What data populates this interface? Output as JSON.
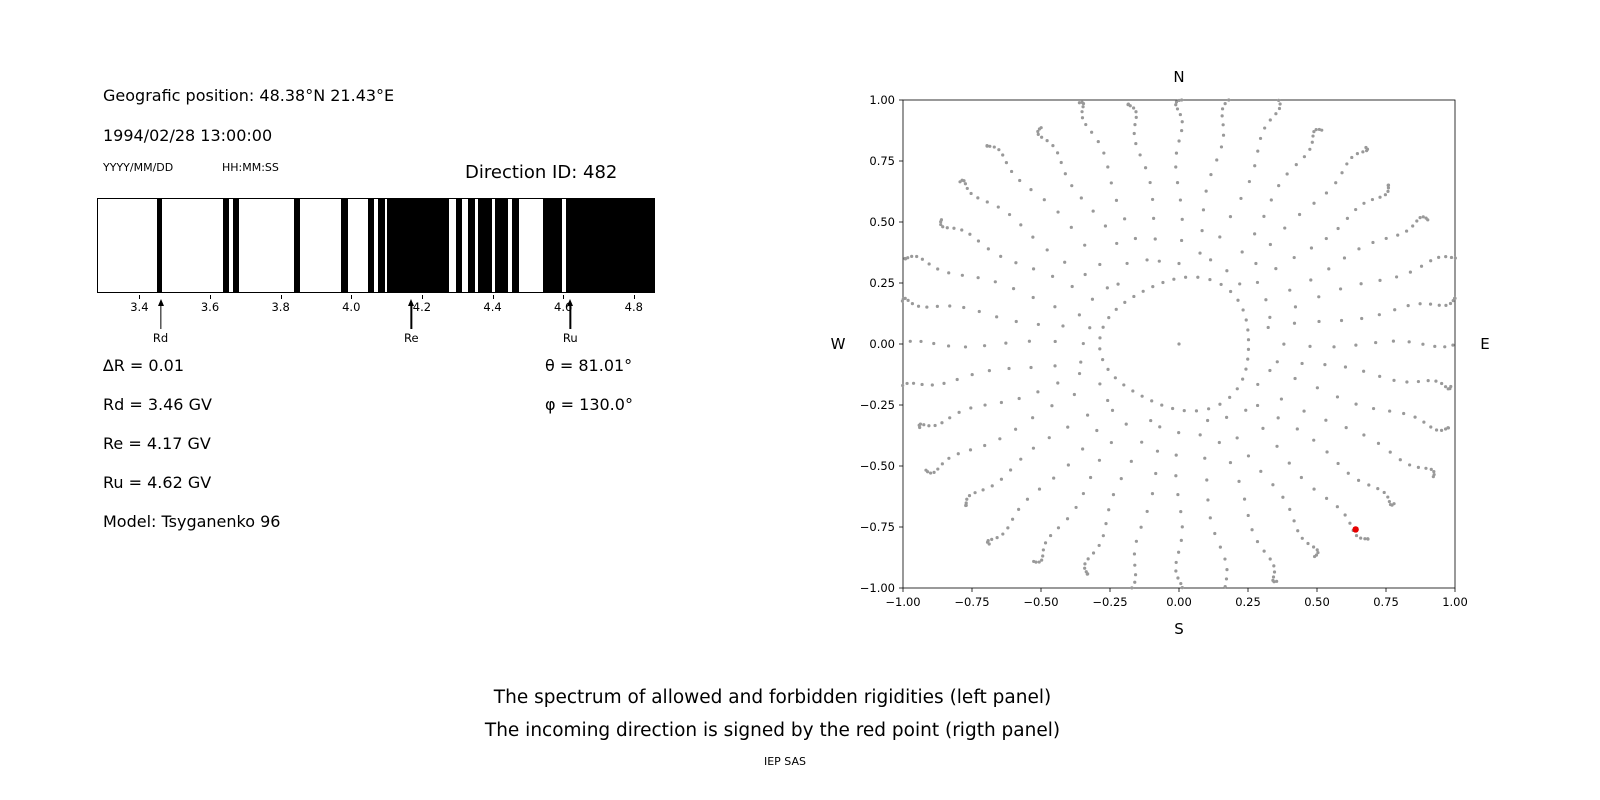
{
  "header": {
    "geo_position": "Geografic position: 48.38°N 21.43°E",
    "datetime": "1994/02/28 13:00:00",
    "date_format_label": "YYYY/MM/DD",
    "time_format_label": "HH:MM:SS",
    "direction_id": "Direction ID: 482"
  },
  "stats": {
    "delta_r": "∆R = 0.01",
    "theta": "θ = 81.01°",
    "rd": "Rd = 3.46 GV",
    "phi": "φ = 130.0°",
    "re": "Re = 4.17 GV",
    "ru": "Ru = 4.62 GV",
    "model": "Model: Tsyganenko 96"
  },
  "captions": {
    "line1": "The spectrum of allowed and forbidden rigidities (left panel)",
    "line2": "The incoming direction is signed by the red point (rigth panel)",
    "credit": "IEP SAS"
  },
  "chart_data": [
    {
      "type": "bar",
      "description": "Penumbra spectrum: black bands = forbidden/allowed rigidity intervals over rigidity axis in GV",
      "xlim": [
        3.28,
        4.86
      ],
      "xticks": [
        3.4,
        3.6,
        3.8,
        4.0,
        4.2,
        4.4,
        4.6,
        4.8
      ],
      "black_bands_gv": [
        [
          3.447,
          3.463
        ],
        [
          3.635,
          3.652
        ],
        [
          3.664,
          3.681
        ],
        [
          3.838,
          3.854
        ],
        [
          3.97,
          3.99
        ],
        [
          4.046,
          4.064
        ],
        [
          4.077,
          4.095
        ],
        [
          4.1,
          4.277
        ],
        [
          4.296,
          4.315
        ],
        [
          4.332,
          4.35
        ],
        [
          4.361,
          4.4
        ],
        [
          4.409,
          4.446
        ],
        [
          4.457,
          4.475
        ],
        [
          4.545,
          4.599
        ],
        [
          4.61,
          4.86
        ]
      ],
      "markers": [
        {
          "label": "Rd",
          "value_gv": 3.46
        },
        {
          "label": "Re",
          "value_gv": 4.17
        },
        {
          "label": "Ru",
          "value_gv": 4.62
        }
      ]
    },
    {
      "type": "scatter",
      "description": "Asymptotic direction map: gray dot spokes radiating from center, inner dotted ring, red point marks incoming direction",
      "xlim": [
        -1.0,
        1.0
      ],
      "ylim": [
        -1.0,
        1.0
      ],
      "xticks": [
        -1.0,
        -0.75,
        -0.5,
        -0.25,
        0.0,
        0.25,
        0.5,
        0.75,
        1.0
      ],
      "yticks": [
        -1.0,
        -0.75,
        -0.5,
        -0.25,
        0.0,
        0.25,
        0.5,
        0.75,
        1.0
      ],
      "compass_labels": {
        "north": "N",
        "south": "S",
        "west": "W",
        "east": "E"
      },
      "dot_color": "#999999",
      "red_point": {
        "x": 0.64,
        "y": -0.76,
        "color": "#e60000"
      },
      "pattern": {
        "spokes": 36,
        "r_start": 0.33,
        "r_end_base": 1.0,
        "dots_per_spoke": 16,
        "tail_exponent": 2.2,
        "ring_radius": 0.27,
        "ring_dots": 40,
        "center_dot": true
      }
    }
  ]
}
